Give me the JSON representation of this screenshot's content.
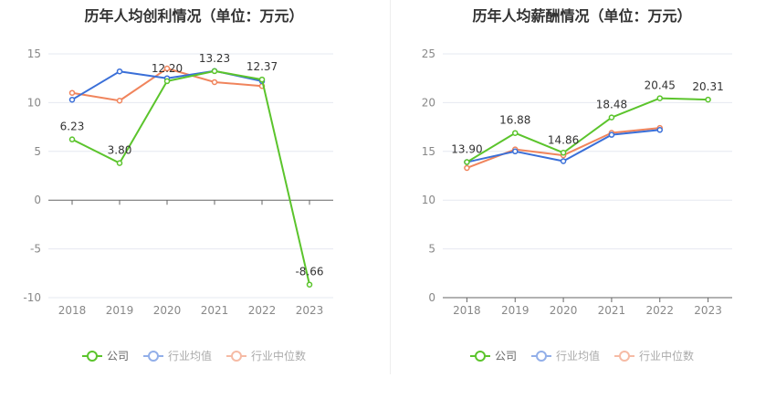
{
  "colors": {
    "company": "#5bc42c",
    "industry_avg": "#3a6fd8",
    "industry_median": "#f0845c"
  },
  "chart_data": [
    {
      "type": "line",
      "title": "历年人均创利情况（单位：万元）",
      "categories": [
        "2018",
        "2019",
        "2020",
        "2021",
        "2022",
        "2023"
      ],
      "ylim": [
        -10,
        15
      ],
      "yticks": [
        -10,
        -5,
        0,
        5,
        10,
        15
      ],
      "grid": true,
      "legend_position": "bottom",
      "series": [
        {
          "name": "公司",
          "key": "company",
          "values": [
            6.23,
            3.8,
            12.2,
            13.23,
            12.37,
            -8.66
          ],
          "labels": [
            "6.23",
            "3.80",
            "12.20",
            "13.23",
            "12.37",
            "-8.66"
          ]
        },
        {
          "name": "行业均值",
          "key": "industry_avg",
          "values": [
            10.3,
            13.2,
            12.5,
            13.25,
            12.2,
            null
          ]
        },
        {
          "name": "行业中位数",
          "key": "industry_median",
          "values": [
            11.0,
            10.2,
            13.5,
            12.1,
            11.7,
            null
          ]
        }
      ]
    },
    {
      "type": "line",
      "title": "历年人均薪酬情况（单位：万元）",
      "categories": [
        "2018",
        "2019",
        "2020",
        "2021",
        "2022",
        "2023"
      ],
      "ylim": [
        0,
        25
      ],
      "yticks": [
        0,
        5,
        10,
        15,
        20,
        25
      ],
      "grid": true,
      "legend_position": "bottom",
      "series": [
        {
          "name": "公司",
          "key": "company",
          "values": [
            13.9,
            16.88,
            14.86,
            18.48,
            20.45,
            20.31
          ],
          "labels": [
            "13.90",
            "16.88",
            "14.86",
            "18.48",
            "20.45",
            "20.31"
          ]
        },
        {
          "name": "行业均值",
          "key": "industry_avg",
          "values": [
            13.9,
            15.0,
            14.0,
            16.7,
            17.2,
            null
          ]
        },
        {
          "name": "行业中位数",
          "key": "industry_median",
          "values": [
            13.3,
            15.2,
            14.6,
            16.9,
            17.4,
            null
          ]
        }
      ]
    }
  ],
  "legend": {
    "company": "公司",
    "industry_avg": "行业均值",
    "industry_median": "行业中位数"
  }
}
